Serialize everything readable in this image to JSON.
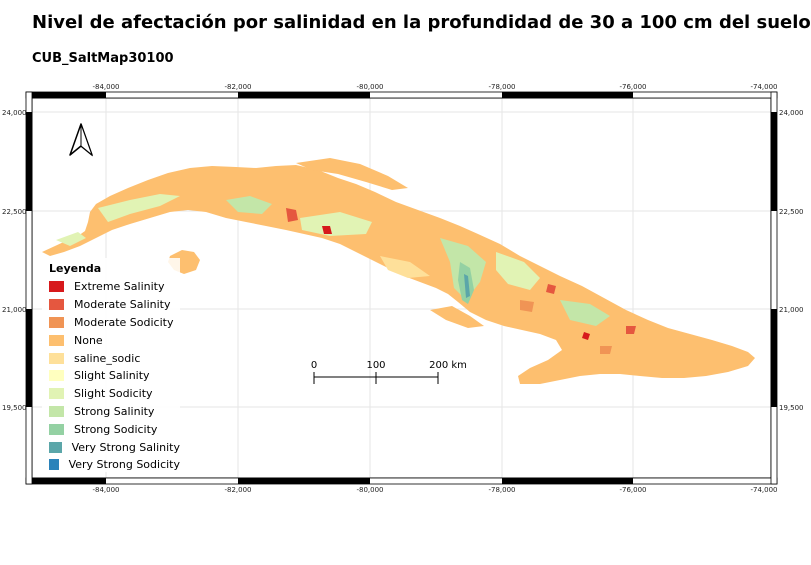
{
  "title": "Nivel de afectación por salinidad en la profundidad de 30 a 100 cm del suelo",
  "subtitle": "CUB_SaltMap30100",
  "axes": {
    "x_ticks": [
      "-84,000",
      "-82,000",
      "-80,000",
      "-78,000",
      "-76,000",
      "-74,000"
    ],
    "y_ticks": [
      "24,000",
      "22,500",
      "21,000",
      "19,500"
    ]
  },
  "legend": {
    "title": "Leyenda",
    "items": [
      {
        "label": "Extreme Salinity",
        "color": "#d7191c"
      },
      {
        "label": "Moderate Salinity",
        "color": "#e5573f"
      },
      {
        "label": "Moderate Sodicity",
        "color": "#f09455"
      },
      {
        "label": "None",
        "color": "#fdbf6f"
      },
      {
        "label": "saline_sodic",
        "color": "#fee09a"
      },
      {
        "label": "Slight Salinity",
        "color": "#ffffbf"
      },
      {
        "label": "Slight Sodicity",
        "color": "#e1f3b4"
      },
      {
        "label": "Strong Salinity",
        "color": "#c3e6a8"
      },
      {
        "label": "Strong Sodicity",
        "color": "#94d1a3"
      },
      {
        "label": "Very Strong Salinity",
        "color": "#5ba6a9"
      },
      {
        "label": "Very Strong Sodicity",
        "color": "#2b83ba"
      }
    ]
  },
  "scalebar": {
    "labels": [
      "0",
      "100",
      "200 km"
    ]
  },
  "north_arrow": "north-arrow-icon",
  "colors": {
    "land": "#fdbf6f",
    "frame": "#000000",
    "grid": "#e6e6e6"
  }
}
